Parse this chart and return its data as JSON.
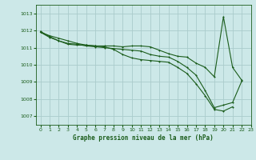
{
  "title": "Graphe pression niveau de la mer (hPa)",
  "xlim": [
    -0.5,
    23
  ],
  "ylim": [
    1006.5,
    1013.5
  ],
  "yticks": [
    1007,
    1008,
    1009,
    1010,
    1011,
    1012,
    1013
  ],
  "xticks": [
    0,
    1,
    2,
    3,
    4,
    5,
    6,
    7,
    8,
    9,
    10,
    11,
    12,
    13,
    14,
    15,
    16,
    17,
    18,
    19,
    20,
    21,
    22,
    23
  ],
  "bg_color": "#cce8e8",
  "grid_color": "#aacccc",
  "line_color": "#1a5c1a",
  "line1_x": [
    0,
    1,
    2,
    3,
    4,
    5,
    6,
    7,
    8,
    9,
    10,
    11,
    12,
    13,
    14,
    15,
    16,
    17,
    18,
    19,
    20,
    21,
    22
  ],
  "line1_y": [
    1011.9,
    1011.7,
    1011.55,
    1011.4,
    1011.25,
    1011.15,
    1011.1,
    1011.1,
    1011.1,
    1011.05,
    1011.1,
    1011.1,
    1011.05,
    1010.85,
    1010.65,
    1010.5,
    1010.45,
    1010.1,
    1009.85,
    1009.3,
    1012.8,
    1009.85,
    1009.1
  ],
  "line2_x": [
    0,
    1,
    2,
    3,
    4,
    5,
    6,
    7,
    8,
    9,
    10,
    11,
    12,
    13,
    14,
    15,
    16,
    17,
    18,
    19,
    20,
    21,
    22
  ],
  "line2_y": [
    1011.95,
    1011.65,
    1011.4,
    1011.2,
    1011.15,
    1011.15,
    1011.1,
    1011.05,
    1010.9,
    1010.6,
    1010.4,
    1010.3,
    1010.25,
    1010.2,
    1010.15,
    1009.85,
    1009.5,
    1008.9,
    1008.2,
    1007.4,
    1007.3,
    1007.55,
    null
  ],
  "line3_x": [
    0,
    1,
    2,
    3,
    4,
    5,
    6,
    7,
    8,
    9,
    10,
    11,
    12,
    13,
    14,
    15,
    16,
    17,
    18,
    19,
    20,
    21,
    22
  ],
  "line3_y": [
    1011.9,
    1011.6,
    1011.4,
    1011.25,
    1011.2,
    1011.1,
    1011.05,
    1011.0,
    1010.95,
    1010.9,
    1010.85,
    1010.8,
    1010.6,
    1010.5,
    1010.45,
    1010.2,
    1009.85,
    1009.4,
    1008.5,
    1007.5,
    1007.65,
    1007.8,
    1009.05
  ]
}
